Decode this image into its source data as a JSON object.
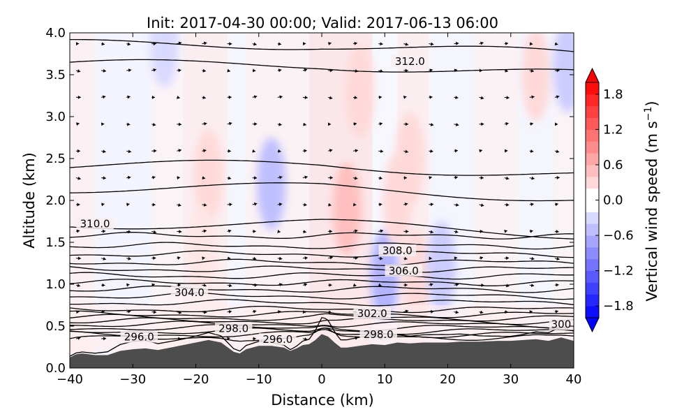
{
  "chart_data": {
    "type": "heatmap",
    "title": "Init: 2017-04-30 00:00; Valid: 2017-06-13 06:00",
    "xlabel": "Distance (km)",
    "ylabel": "Altitude (km)",
    "xlim": [
      -40,
      40
    ],
    "ylim": [
      0.0,
      4.0
    ],
    "x_ticks": [
      -40,
      -30,
      -20,
      -10,
      0,
      10,
      20,
      30,
      40
    ],
    "x_tick_labels": [
      "−40",
      "−30",
      "−20",
      "−10",
      "0",
      "10",
      "20",
      "30",
      "40"
    ],
    "y_ticks": [
      0.0,
      0.5,
      1.0,
      1.5,
      2.0,
      2.5,
      3.0,
      3.5,
      4.0
    ],
    "y_tick_labels": [
      "0.0",
      "0.5",
      "1.0",
      "1.5",
      "2.0",
      "2.5",
      "3.0",
      "3.5",
      "4.0"
    ],
    "grid": false,
    "colorbar": {
      "label": "Vertical wind speed",
      "label_unit": "(m s",
      "label_exp": "−1",
      "label_close": ")",
      "range": [
        -2.0,
        2.0
      ],
      "extend": "both",
      "ticks": [
        -1.8,
        -1.2,
        -0.6,
        0.0,
        0.6,
        1.2,
        1.8
      ],
      "tick_labels": [
        "−1.8",
        "−1.2",
        "−0.6",
        "0.0",
        "0.6",
        "1.2",
        "1.8"
      ],
      "colormap": "bwr"
    },
    "vertical_wind_features": [
      {
        "x": -25,
        "z": 3.9,
        "w": -0.3
      },
      {
        "x": -18,
        "z": 2.3,
        "w": 0.3
      },
      {
        "x": -19,
        "z": 1.4,
        "w": 0.2
      },
      {
        "x": -8,
        "z": 2.2,
        "w": -0.5
      },
      {
        "x": 4,
        "z": 1.9,
        "w": 0.5
      },
      {
        "x": 6,
        "z": 3.3,
        "w": 0.3
      },
      {
        "x": 10,
        "z": 1.1,
        "w": -0.6
      },
      {
        "x": 12,
        "z": 2.0,
        "w": 0.3
      },
      {
        "x": 14,
        "z": 2.5,
        "w": 0.3
      },
      {
        "x": 15,
        "z": 1.1,
        "w": 0.3
      },
      {
        "x": 19,
        "z": 1.2,
        "w": -0.4
      },
      {
        "x": 34,
        "z": 3.5,
        "w": 0.3
      },
      {
        "x": 39,
        "z": 3.6,
        "w": -0.4
      }
    ],
    "theta_contours": [
      {
        "label": "296.0",
        "label_x": -29,
        "label_z": 0.37
      },
      {
        "label": "296.0",
        "label_x": -7,
        "label_z": 0.34
      },
      {
        "label": "298.0",
        "label_x": -14,
        "label_z": 0.47
      },
      {
        "label": "298.0",
        "label_x": 9,
        "label_z": 0.4
      },
      {
        "label": "300",
        "label_x": 38,
        "label_z": 0.52
      },
      {
        "label": "302.0",
        "label_x": 8,
        "label_z": 0.65
      },
      {
        "label": "304.0",
        "label_x": -21,
        "label_z": 0.9
      },
      {
        "label": "306.0",
        "label_x": 13,
        "label_z": 1.16
      },
      {
        "label": "308.0",
        "label_x": 12,
        "label_z": 1.4
      },
      {
        "label": "310.0",
        "label_x": -36,
        "label_z": 1.72
      },
      {
        "label": "312.0",
        "label_x": 14,
        "label_z": 3.66
      }
    ],
    "terrain": {
      "x": [
        -40,
        -39,
        -38,
        -36,
        -34,
        -32,
        -30,
        -28,
        -26,
        -24,
        -22,
        -20,
        -18,
        -16,
        -14,
        -13,
        -12,
        -10,
        -8,
        -6,
        -5,
        -4,
        -3,
        -2,
        -1,
        0,
        1,
        2,
        3,
        4,
        6,
        8,
        10,
        12,
        14,
        16,
        18,
        20,
        22,
        25,
        28,
        30,
        32,
        34,
        36,
        38,
        40
      ],
      "z": [
        0.12,
        0.16,
        0.17,
        0.15,
        0.15,
        0.2,
        0.22,
        0.23,
        0.21,
        0.24,
        0.27,
        0.3,
        0.33,
        0.3,
        0.19,
        0.17,
        0.22,
        0.26,
        0.26,
        0.24,
        0.2,
        0.23,
        0.27,
        0.28,
        0.33,
        0.4,
        0.37,
        0.3,
        0.24,
        0.24,
        0.26,
        0.28,
        0.27,
        0.3,
        0.29,
        0.3,
        0.3,
        0.3,
        0.31,
        0.31,
        0.32,
        0.32,
        0.33,
        0.34,
        0.32,
        0.36,
        0.32
      ]
    }
  }
}
